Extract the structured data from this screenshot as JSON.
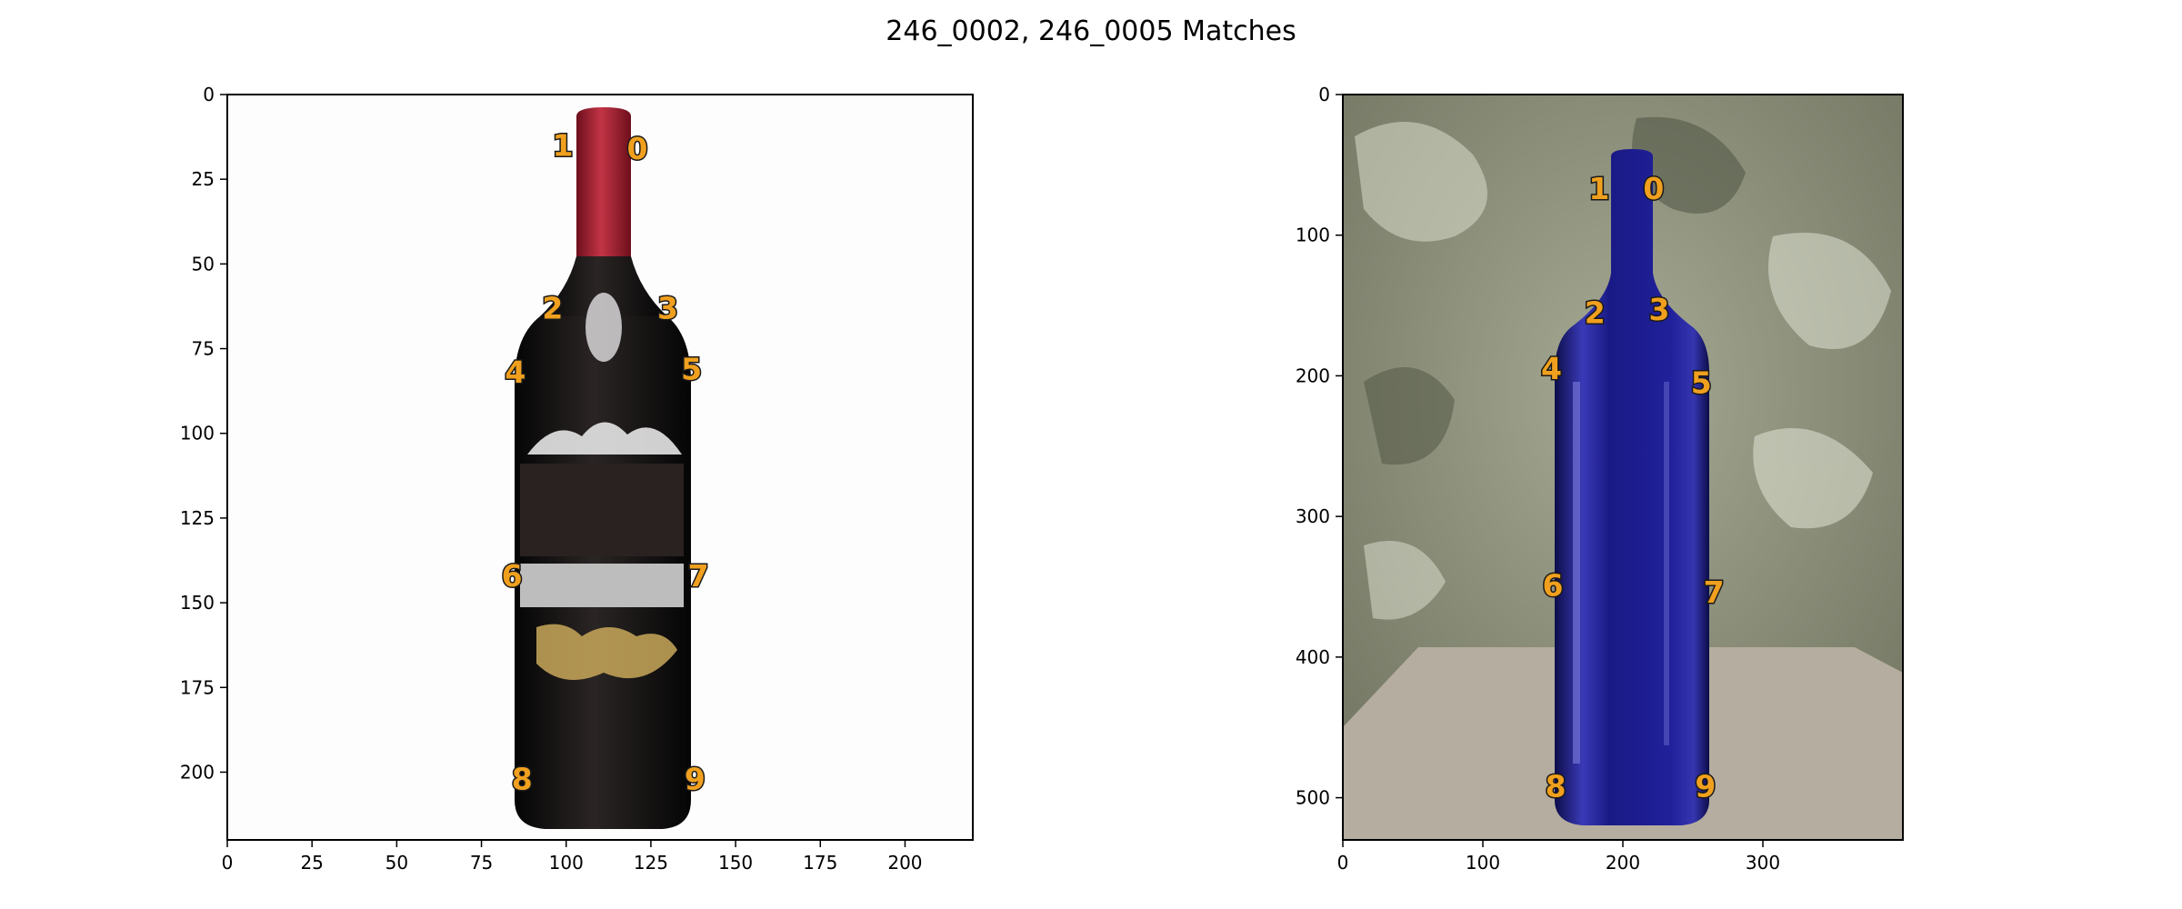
{
  "title": "246_0002, 246_0005 Matches",
  "colors": {
    "keypoint": "#f0a01e",
    "keypoint_outline": "#1a1a1a",
    "left_label_red": "#9a1a2a",
    "left_bottle": "#1b1716",
    "right_bottle": "#16166e",
    "wall": "#8e927c",
    "table": "#b5ad9f"
  },
  "chart_data": [
    {
      "type": "scatter",
      "name_hint": "left-image",
      "image_width": 220,
      "image_height": 220,
      "xlim": [
        0,
        220
      ],
      "ylim": [
        220,
        0
      ],
      "xticks": [
        0,
        25,
        50,
        75,
        100,
        125,
        150,
        175,
        200
      ],
      "yticks": [
        0,
        25,
        50,
        75,
        100,
        125,
        150,
        175,
        200
      ],
      "points": [
        {
          "label": "0",
          "x": 121,
          "y": 16
        },
        {
          "label": "1",
          "x": 99,
          "y": 15
        },
        {
          "label": "2",
          "x": 96,
          "y": 63
        },
        {
          "label": "3",
          "x": 130,
          "y": 63
        },
        {
          "label": "4",
          "x": 85,
          "y": 82
        },
        {
          "label": "5",
          "x": 137,
          "y": 81
        },
        {
          "label": "6",
          "x": 84,
          "y": 142
        },
        {
          "label": "7",
          "x": 139,
          "y": 142
        },
        {
          "label": "8",
          "x": 87,
          "y": 202
        },
        {
          "label": "9",
          "x": 138,
          "y": 202
        }
      ]
    },
    {
      "type": "scatter",
      "name_hint": "right-image",
      "image_width": 400,
      "image_height": 530,
      "xlim": [
        0,
        400
      ],
      "ylim": [
        530,
        0
      ],
      "xticks": [
        0,
        100,
        200,
        300
      ],
      "yticks": [
        0,
        100,
        200,
        300,
        400,
        500
      ],
      "points": [
        {
          "label": "0",
          "x": 222,
          "y": 67
        },
        {
          "label": "1",
          "x": 183,
          "y": 67
        },
        {
          "label": "2",
          "x": 180,
          "y": 155
        },
        {
          "label": "3",
          "x": 226,
          "y": 153
        },
        {
          "label": "4",
          "x": 149,
          "y": 195
        },
        {
          "label": "5",
          "x": 256,
          "y": 205
        },
        {
          "label": "6",
          "x": 150,
          "y": 349
        },
        {
          "label": "7",
          "x": 265,
          "y": 354
        },
        {
          "label": "8",
          "x": 152,
          "y": 492
        },
        {
          "label": "9",
          "x": 259,
          "y": 492
        }
      ]
    }
  ]
}
